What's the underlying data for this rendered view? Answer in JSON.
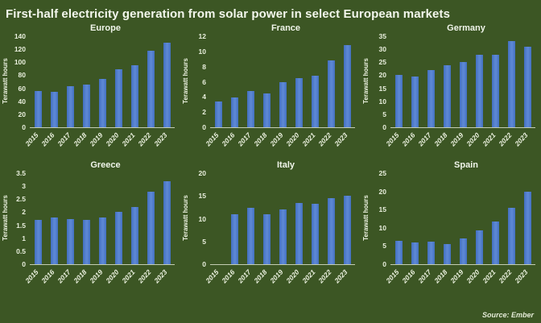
{
  "title": "First-half electricity generation from solar power in select European markets",
  "source_note": "Source: Ember",
  "colors": {
    "background": "#3c5624",
    "bar_blue": "#4e7ac8",
    "text": "#f0f5ea",
    "axis_line": "#c3cdb2"
  },
  "chart_data": [
    {
      "type": "bar",
      "title": "Europe",
      "ylabel": "Terawatt hours",
      "categories": [
        "2015",
        "2016",
        "2017",
        "2018",
        "2019",
        "2020",
        "2021",
        "2022",
        "2023"
      ],
      "values": [
        56,
        55,
        63,
        66,
        74,
        89,
        96,
        118,
        130
      ],
      "ylim": [
        0,
        140
      ],
      "ytick_step": 20,
      "grid": false,
      "legend": false
    },
    {
      "type": "bar",
      "title": "France",
      "ylabel": "Terawatt hours",
      "categories": [
        "2015",
        "2016",
        "2017",
        "2018",
        "2019",
        "2020",
        "2021",
        "2022",
        "2023"
      ],
      "values": [
        3.4,
        3.9,
        4.8,
        4.5,
        5.9,
        6.5,
        6.8,
        8.8,
        10.8
      ],
      "ylim": [
        0,
        12
      ],
      "ytick_step": 2,
      "grid": false,
      "legend": false
    },
    {
      "type": "bar",
      "title": "Germany",
      "ylabel": "Terawatt hours",
      "categories": [
        "2015",
        "2016",
        "2017",
        "2018",
        "2019",
        "2020",
        "2021",
        "2022",
        "2023"
      ],
      "values": [
        20,
        19.5,
        22,
        23.7,
        25,
        28,
        28,
        33,
        31
      ],
      "ylim": [
        0,
        35
      ],
      "ytick_step": 5,
      "grid": false,
      "legend": false
    },
    {
      "type": "bar",
      "title": "Greece",
      "ylabel": "Terawatt hours",
      "categories": [
        "2015",
        "2016",
        "2017",
        "2018",
        "2019",
        "2020",
        "2021",
        "2022",
        "2023"
      ],
      "values": [
        1.7,
        1.8,
        1.75,
        1.7,
        1.8,
        2.0,
        2.2,
        2.8,
        3.2
      ],
      "ylim": [
        0,
        3.5
      ],
      "ytick_step": 0.5,
      "grid": false,
      "legend": false
    },
    {
      "type": "bar",
      "title": "Italy",
      "ylabel": "Terawatt hours",
      "categories": [
        "2015",
        "2016",
        "2017",
        "2018",
        "2019",
        "2020",
        "2021",
        "2022",
        "2023"
      ],
      "values": [
        null,
        11,
        12.4,
        11,
        12.1,
        13.5,
        13.3,
        14.5,
        15.1
      ],
      "ylim": [
        0,
        20
      ],
      "ytick_step": 5,
      "grid": false,
      "legend": false
    },
    {
      "type": "bar",
      "title": "Spain",
      "ylabel": "Terawatt hours",
      "categories": [
        "2015",
        "2016",
        "2017",
        "2018",
        "2019",
        "2020",
        "2021",
        "2022",
        "2023"
      ],
      "values": [
        6.5,
        6.0,
        6.3,
        5.5,
        7.0,
        9.4,
        11.7,
        15.5,
        20.0
      ],
      "ylim": [
        0,
        25
      ],
      "ytick_step": 5,
      "grid": false,
      "legend": false
    }
  ]
}
